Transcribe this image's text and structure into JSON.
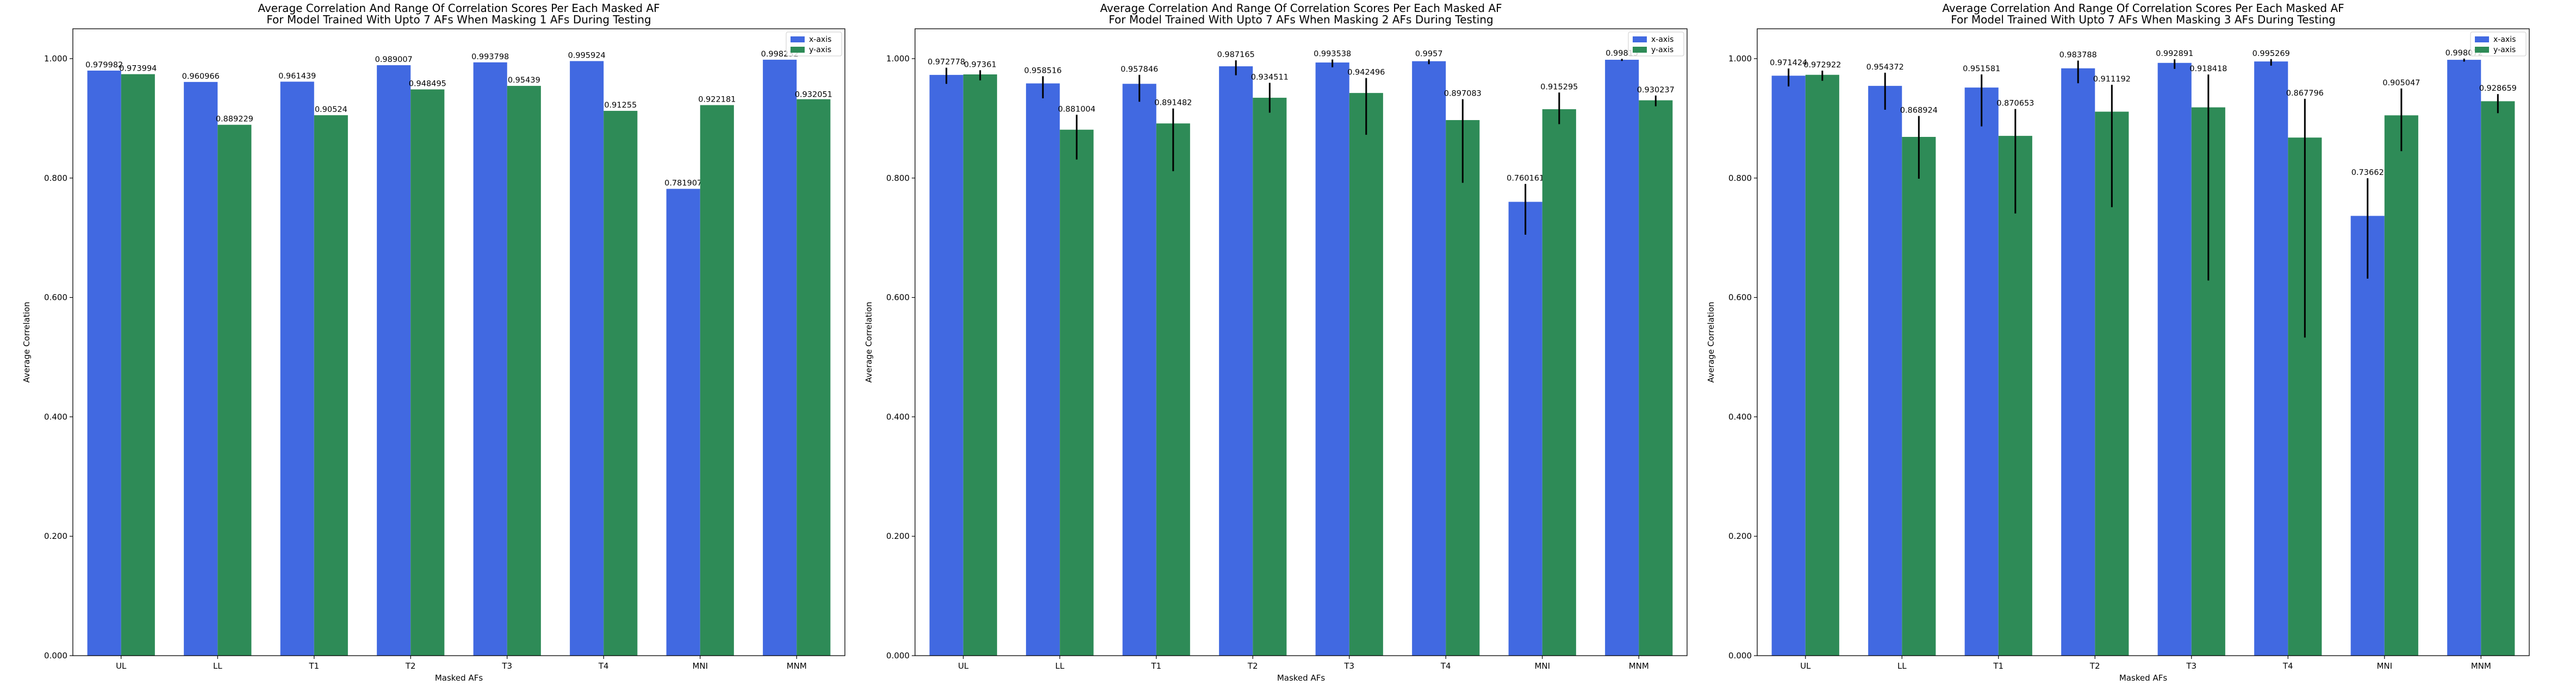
{
  "colors": {
    "x_axis": "#4169E1",
    "y_axis": "#2E8B57",
    "error_bar": "#000000",
    "frame": "#000000"
  },
  "chart_data": [
    {
      "type": "bar",
      "title": "Average Correlation And Range Of Correlation Scores Per Each Masked AF\nFor Model Trained With Upto 7 AFs When Masking 1 AFs During Testing",
      "xlabel": "Masked AFs",
      "ylabel": "Average Correlation",
      "ylim": [
        0,
        1.05
      ],
      "yticks": [
        0.0,
        0.2,
        0.4,
        0.6,
        0.8,
        1.0
      ],
      "ytick_labels": [
        "0.000",
        "0.200",
        "0.400",
        "0.600",
        "0.800",
        "1.000"
      ],
      "legend": "top-right",
      "categories": [
        "UL",
        "LL",
        "T1",
        "T2",
        "T3",
        "T4",
        "MNI",
        "MNM"
      ],
      "series": [
        {
          "name": "x-axis",
          "values": [
            0.979982,
            0.960966,
            0.961439,
            0.989007,
            0.993798,
            0.995924,
            0.781907,
            0.998232
          ],
          "labels": [
            "0.979982",
            "0.960966",
            "0.961439",
            "0.989007",
            "0.993798",
            "0.995924",
            "0.781907",
            "0.998232"
          ],
          "err_low": [
            0,
            0,
            0,
            0,
            0,
            0,
            0,
            0
          ],
          "err_high": [
            0,
            0,
            0,
            0,
            0,
            0,
            0,
            0
          ]
        },
        {
          "name": "y-axis",
          "values": [
            0.973994,
            0.889229,
            0.90524,
            0.948495,
            0.95439,
            0.91255,
            0.922181,
            0.932051
          ],
          "labels": [
            "0.973994",
            "0.889229",
            "0.90524",
            "0.948495",
            "0.95439",
            "0.91255",
            "0.922181",
            "0.932051"
          ],
          "err_low": [
            0,
            0,
            0,
            0,
            0,
            0,
            0,
            0
          ],
          "err_high": [
            0,
            0,
            0,
            0,
            0,
            0,
            0,
            0
          ]
        }
      ]
    },
    {
      "type": "bar",
      "title": "Average Correlation And Range Of Correlation Scores Per Each Masked AF\nFor Model Trained With Upto 7 AFs When Masking 2 AFs During Testing",
      "xlabel": "Masked AFs",
      "ylabel": "Average Correlation",
      "ylim": [
        0,
        1.05
      ],
      "yticks": [
        0.0,
        0.2,
        0.4,
        0.6,
        0.8,
        1.0
      ],
      "ytick_labels": [
        "0.000",
        "0.200",
        "0.400",
        "0.600",
        "0.800",
        "1.000"
      ],
      "legend": "top-right",
      "categories": [
        "UL",
        "LL",
        "T1",
        "T2",
        "T3",
        "T4",
        "MNI",
        "MNM"
      ],
      "series": [
        {
          "name": "x-axis",
          "values": [
            0.972778,
            0.958516,
            0.957846,
            0.987165,
            0.993538,
            0.9957,
            0.760161,
            0.99815
          ],
          "labels": [
            "0.972778",
            "0.958516",
            "0.957846",
            "0.987165",
            "0.993538",
            "0.9957",
            "0.760161",
            "0.99815"
          ],
          "err_low": [
            0.015,
            0.025,
            0.03,
            0.015,
            0.008,
            0.005,
            0.055,
            0.002
          ],
          "err_high": [
            0.012,
            0.012,
            0.015,
            0.01,
            0.005,
            0.003,
            0.03,
            0.0015
          ]
        },
        {
          "name": "y-axis",
          "values": [
            0.97361,
            0.881004,
            0.891482,
            0.934511,
            0.942496,
            0.897083,
            0.915295,
            0.930237
          ],
          "labels": [
            "0.97361",
            "0.881004",
            "0.891482",
            "0.934511",
            "0.942496",
            "0.897083",
            "0.915295",
            "0.930237"
          ],
          "err_low": [
            0.01,
            0.05,
            0.08,
            0.025,
            0.07,
            0.105,
            0.025,
            0.01
          ],
          "err_high": [
            0.007,
            0.025,
            0.025,
            0.025,
            0.025,
            0.035,
            0.028,
            0.008
          ]
        }
      ]
    },
    {
      "type": "bar",
      "title": "Average Correlation And Range Of Correlation Scores Per Each Masked AF\nFor Model Trained With Upto 7 AFs When Masking 3 AFs During Testing",
      "xlabel": "Masked AFs",
      "ylabel": "Average Correlation",
      "ylim": [
        0,
        1.05
      ],
      "yticks": [
        0.0,
        0.2,
        0.4,
        0.6,
        0.8,
        1.0
      ],
      "ytick_labels": [
        "0.000",
        "0.200",
        "0.400",
        "0.600",
        "0.800",
        "1.000"
      ],
      "legend": "top-right",
      "categories": [
        "UL",
        "LL",
        "T1",
        "T2",
        "T3",
        "T4",
        "MNI",
        "MNM"
      ],
      "series": [
        {
          "name": "x-axis",
          "values": [
            0.971424,
            0.954372,
            0.951581,
            0.983788,
            0.992891,
            0.995269,
            0.73662,
            0.998072
          ],
          "labels": [
            "0.971424",
            "0.954372",
            "0.951581",
            "0.983788",
            "0.992891",
            "0.995269",
            "0.73662",
            "0.998072"
          ],
          "err_low": [
            0.018,
            0.04,
            0.065,
            0.025,
            0.01,
            0.007,
            0.105,
            0.003
          ],
          "err_high": [
            0.012,
            0.022,
            0.022,
            0.013,
            0.006,
            0.004,
            0.063,
            0.002
          ]
        },
        {
          "name": "y-axis",
          "values": [
            0.972922,
            0.868924,
            0.870653,
            0.911192,
            0.918418,
            0.867796,
            0.905047,
            0.928659
          ],
          "labels": [
            "0.972922",
            "0.868924",
            "0.870653",
            "0.911192",
            "0.918418",
            "0.867796",
            "0.905047",
            "0.928659"
          ],
          "err_low": [
            0.01,
            0.07,
            0.13,
            0.16,
            0.29,
            0.335,
            0.06,
            0.02
          ],
          "err_high": [
            0.007,
            0.035,
            0.045,
            0.045,
            0.055,
            0.065,
            0.045,
            0.012
          ]
        }
      ]
    }
  ]
}
